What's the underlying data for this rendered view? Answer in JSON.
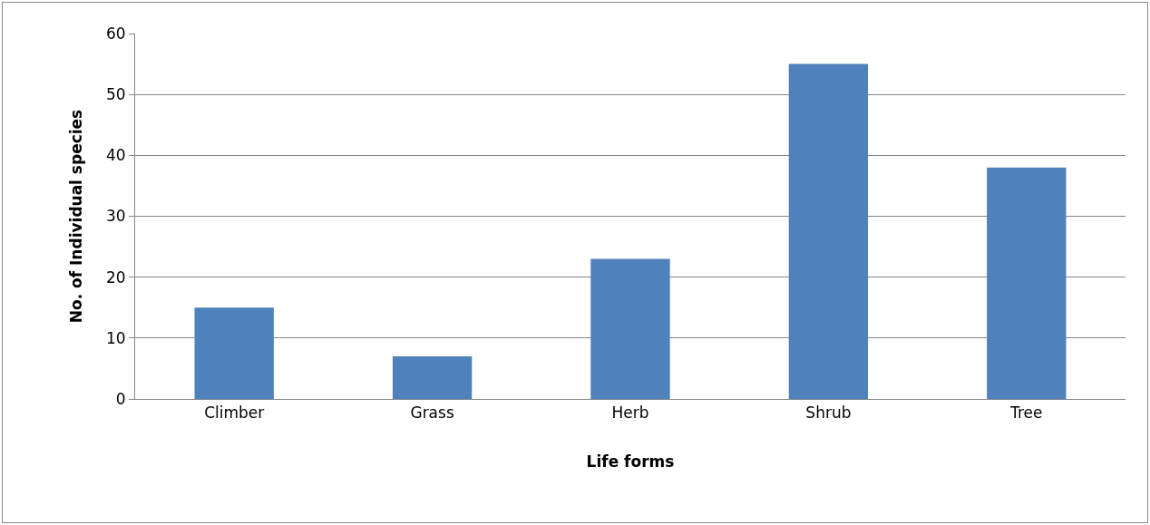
{
  "chart_data": {
    "type": "bar",
    "xlabel": "Life forms",
    "ylabel": "No. of Individual species",
    "categories": [
      "Climber",
      "Grass",
      "Herb",
      "Shrub",
      "Tree"
    ],
    "values": [
      15,
      7,
      23,
      55,
      38
    ],
    "color": "#4f81bd",
    "ylim": [
      0,
      60
    ],
    "yticks": [
      0,
      10,
      20,
      30,
      40,
      50,
      60
    ],
    "grid": "y"
  }
}
